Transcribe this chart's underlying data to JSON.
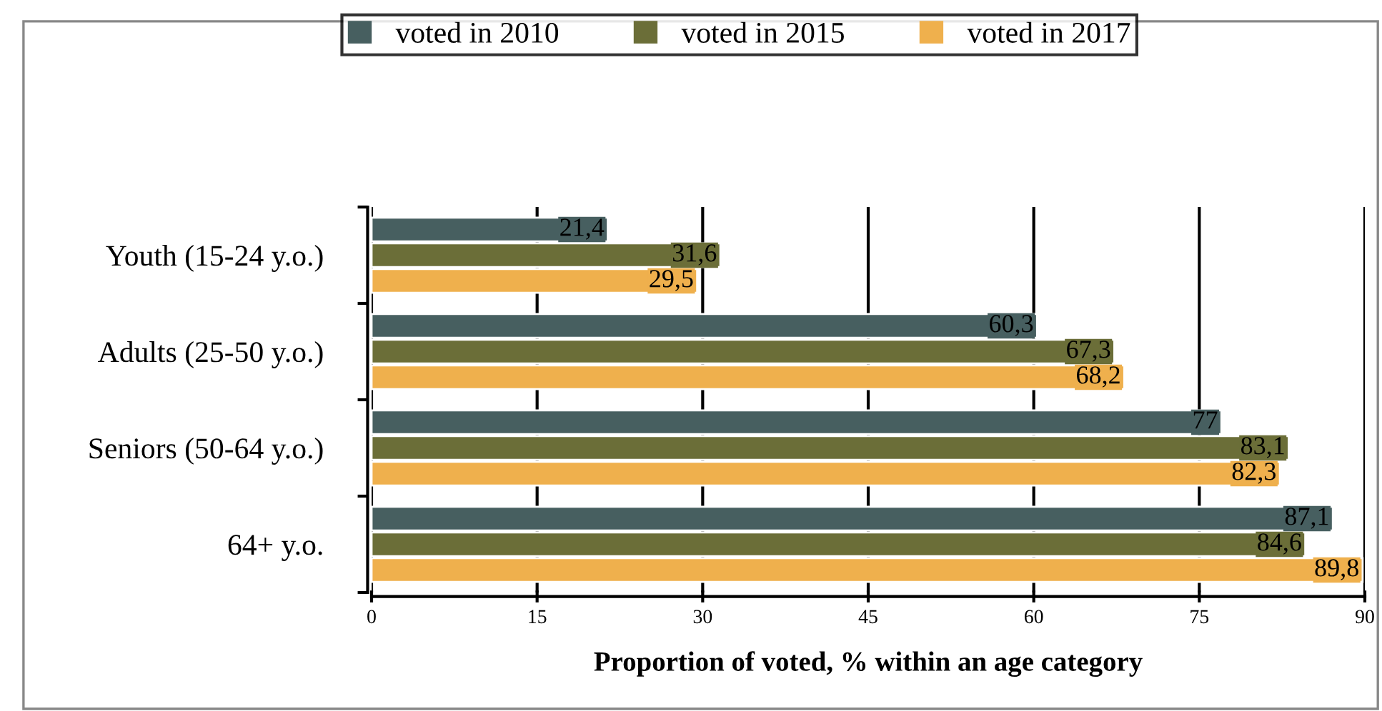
{
  "chart_data": {
    "type": "bar",
    "orientation": "horizontal",
    "xlabel": "Proportion of voted, % within an age category",
    "categories": [
      "Youth (15-24 y.o.)",
      "Adults (25-50 y.o.)",
      "Seniors (50-64 y.o.)",
      "64+ y.o."
    ],
    "series": [
      {
        "name": "voted in 2010",
        "color": "#475f60",
        "values": [
          21.4,
          60.3,
          77,
          87.1
        ],
        "value_labels": [
          "21,4",
          "60,3",
          "77",
          "87,1"
        ]
      },
      {
        "name": "voted in 2015",
        "color": "#6b6e38",
        "values": [
          31.6,
          67.3,
          83.1,
          84.6
        ],
        "value_labels": [
          "31,6",
          "67,3",
          "83,1",
          "84,6"
        ]
      },
      {
        "name": "voted in 2017",
        "color": "#efb04d",
        "values": [
          29.5,
          68.2,
          82.3,
          89.8
        ],
        "value_labels": [
          "29,5",
          "68,2",
          "82,3",
          "89,8"
        ]
      }
    ],
    "xlim": [
      0,
      90
    ],
    "xticks": [
      0,
      15,
      30,
      45,
      60,
      75,
      90
    ],
    "grid": "x",
    "legend": "top"
  }
}
